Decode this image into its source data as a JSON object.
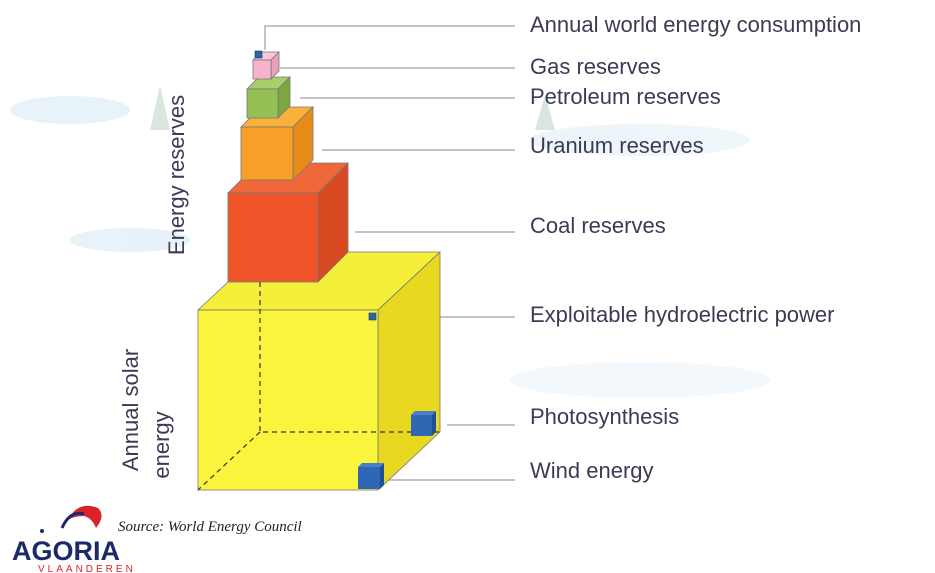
{
  "labels": [
    "Annual world energy consumption",
    "Gas reserves",
    "Petroleum reserves",
    "Uranium reserves",
    "Coal reserves",
    "Exploitable hydroelectric power",
    "Photosynthesis",
    "Wind energy"
  ],
  "side_labels": {
    "reserves": "Energy reserves",
    "solar_line1": "Annual solar",
    "solar_line2": "energy"
  },
  "source": "Source: World Energy Council",
  "logo": {
    "name": "AGORIA",
    "region": "VLAANDEREN"
  }
}
